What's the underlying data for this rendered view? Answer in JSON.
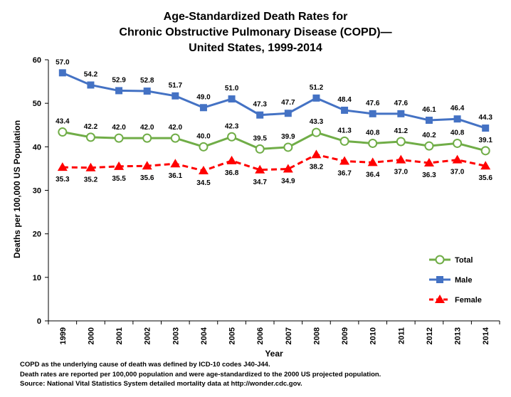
{
  "chart_data": {
    "type": "line",
    "title_lines": [
      "Age-Standardized Death Rates for",
      "Chronic Obstructive Pulmonary Disease (COPD)—",
      "United States, 1999-2014"
    ],
    "xlabel": "Year",
    "ylabel": "Deaths per 100,000 US Population",
    "ylim": [
      0,
      60
    ],
    "yticks": [
      "0",
      "10",
      "20",
      "30",
      "40",
      "50",
      "60"
    ],
    "grid": false,
    "legend_position": "right",
    "categories": [
      "1999",
      "2000",
      "2001",
      "2002",
      "2003",
      "2004",
      "2005",
      "2006",
      "2007",
      "2008",
      "2009",
      "2010",
      "2011",
      "2012",
      "2013",
      "2014"
    ],
    "series": [
      {
        "name": "Total",
        "color": "#70ad47",
        "marker": "circle",
        "values": [
          43.4,
          42.2,
          42.0,
          42.0,
          42.0,
          40.0,
          42.3,
          39.5,
          39.9,
          43.3,
          41.3,
          40.8,
          41.2,
          40.2,
          40.8,
          39.1
        ],
        "labels": [
          "43.4",
          "42.2",
          "42.0",
          "42.0",
          "42.0",
          "40.0",
          "42.3",
          "39.5",
          "39.9",
          "43.3",
          "41.3",
          "40.8",
          "41.2",
          "40.2",
          "40.8",
          "39.1"
        ]
      },
      {
        "name": "Male",
        "color": "#4472c4",
        "marker": "square",
        "values": [
          57.0,
          54.2,
          52.9,
          52.8,
          51.7,
          49.0,
          51.0,
          47.3,
          47.7,
          51.2,
          48.4,
          47.6,
          47.6,
          46.1,
          46.4,
          44.3
        ],
        "labels": [
          "57.0",
          "54.2",
          "52.9",
          "52.8",
          "51.7",
          "49.0",
          "51.0",
          "47.3",
          "47.7",
          "51.2",
          "48.4",
          "47.6",
          "47.6",
          "46.1",
          "46.4",
          "44.3"
        ]
      },
      {
        "name": "Female",
        "color": "#ff0000",
        "marker": "triangle",
        "values": [
          35.3,
          35.2,
          35.5,
          35.6,
          36.1,
          34.5,
          36.8,
          34.7,
          34.9,
          38.2,
          36.7,
          36.4,
          37.0,
          36.3,
          37.0,
          35.6
        ],
        "labels": [
          "35.3",
          "35.2",
          "35.5",
          "35.6",
          "36.1",
          "34.5",
          "36.8",
          "34.7",
          "34.9",
          "38.2",
          "36.7",
          "36.4",
          "37.0",
          "36.3",
          "37.0",
          "35.6"
        ]
      }
    ]
  },
  "footnotes": [
    "COPD as the underlying cause of death was defined by ICD-10 codes J40-J44.",
    "Death rates are reported per 100,000 population and were age-standardized to the 2000 US projected population.",
    "Source: National Vital Statistics System detailed mortality data at http://wonder.cdc.gov."
  ]
}
